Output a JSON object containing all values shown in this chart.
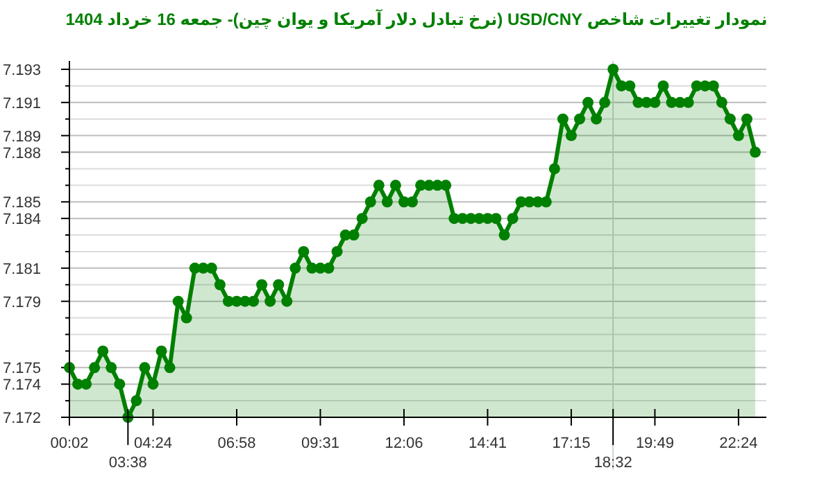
{
  "chart_data": {
    "type": "area",
    "title": "نمودار تغییرات شاخص USD/CNY (نرخ تبادل دلار آمریکا و یوان چین)- جمعه  16 خرداد 1404",
    "categories": [
      "00:02",
      null,
      null,
      null,
      null,
      null,
      null,
      "03:38",
      null,
      null,
      "04:24",
      null,
      null,
      null,
      null,
      null,
      null,
      null,
      null,
      null,
      "06:58",
      null,
      null,
      null,
      null,
      null,
      null,
      null,
      null,
      null,
      "09:31",
      null,
      null,
      null,
      null,
      null,
      null,
      null,
      null,
      null,
      "12:06",
      null,
      null,
      null,
      null,
      null,
      null,
      null,
      null,
      null,
      "14:41",
      null,
      null,
      null,
      null,
      null,
      null,
      null,
      null,
      null,
      "17:15",
      null,
      null,
      null,
      null,
      "18:32",
      null,
      null,
      null,
      null,
      "19:49",
      null,
      null,
      null,
      null,
      null,
      null,
      null,
      null,
      null,
      "22:24",
      null,
      null
    ],
    "series": [
      {
        "color": "#008000",
        "values": [
          7.175,
          7.174,
          7.174,
          7.175,
          7.176,
          7.175,
          7.174,
          7.172,
          7.173,
          7.175,
          7.174,
          7.176,
          7.175,
          7.179,
          7.178,
          7.181,
          7.181,
          7.181,
          7.18,
          7.179,
          7.179,
          7.179,
          7.179,
          7.18,
          7.179,
          7.18,
          7.179,
          7.181,
          7.182,
          7.181,
          7.181,
          7.181,
          7.182,
          7.183,
          7.183,
          7.184,
          7.185,
          7.186,
          7.185,
          7.186,
          7.185,
          7.185,
          7.186,
          7.186,
          7.186,
          7.186,
          7.184,
          7.184,
          7.184,
          7.184,
          7.184,
          7.184,
          7.183,
          7.184,
          7.185,
          7.185,
          7.185,
          7.185,
          7.187,
          7.19,
          7.189,
          7.19,
          7.191,
          7.19,
          7.191,
          7.193,
          7.192,
          7.192,
          7.191,
          7.191,
          7.191,
          7.192,
          7.191,
          7.191,
          7.191,
          7.192,
          7.192,
          7.192,
          7.191,
          7.19,
          7.189,
          7.19,
          7.188
        ]
      }
    ],
    "ylim": [
      7.172,
      7.193
    ],
    "yticks": [
      7.172,
      {
        "value": 7.173,
        "label": null
      },
      7.174,
      7.175,
      {
        "value": 7.176,
        "label": null
      },
      {
        "value": 7.177,
        "label": null
      },
      {
        "value": 7.178,
        "label": null
      },
      7.179,
      {
        "value": 7.18,
        "label": null
      },
      7.181,
      {
        "value": 7.182,
        "label": null
      },
      {
        "value": 7.183,
        "label": null
      },
      7.184,
      7.185,
      {
        "value": 7.186,
        "label": null
      },
      {
        "value": 7.187,
        "label": null
      },
      7.188,
      7.189,
      {
        "value": 7.19,
        "label": null
      },
      7.191,
      {
        "value": 7.192,
        "label": null
      },
      7.193
    ],
    "ref_lines": [
      {
        "axis": "x",
        "value": "18:32",
        "color": "#c8d8c8"
      }
    ],
    "grid": "y",
    "marker": "circle",
    "line_style": "solid"
  }
}
